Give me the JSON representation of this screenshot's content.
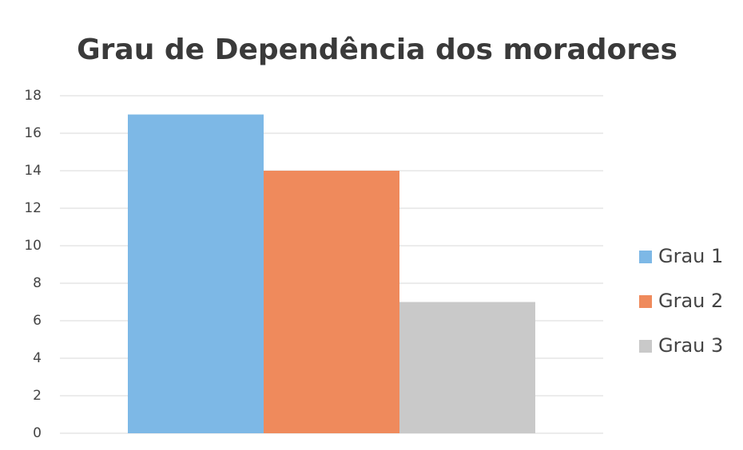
{
  "chart_data": {
    "type": "bar",
    "title": "Grau de Dependência dos moradores",
    "categories": [
      null
    ],
    "series": [
      {
        "name": "Grau 1",
        "color": "#7db8e6",
        "values": [
          17
        ]
      },
      {
        "name": "Grau 2",
        "color": "#ef8a5c",
        "values": [
          14
        ]
      },
      {
        "name": "Grau 3",
        "color": "#c9c9c9",
        "values": [
          7
        ]
      }
    ],
    "ylim": [
      0,
      18
    ],
    "yticks": [
      0,
      2,
      4,
      6,
      8,
      10,
      12,
      14,
      16,
      18
    ],
    "grid": true,
    "legend": "right"
  }
}
